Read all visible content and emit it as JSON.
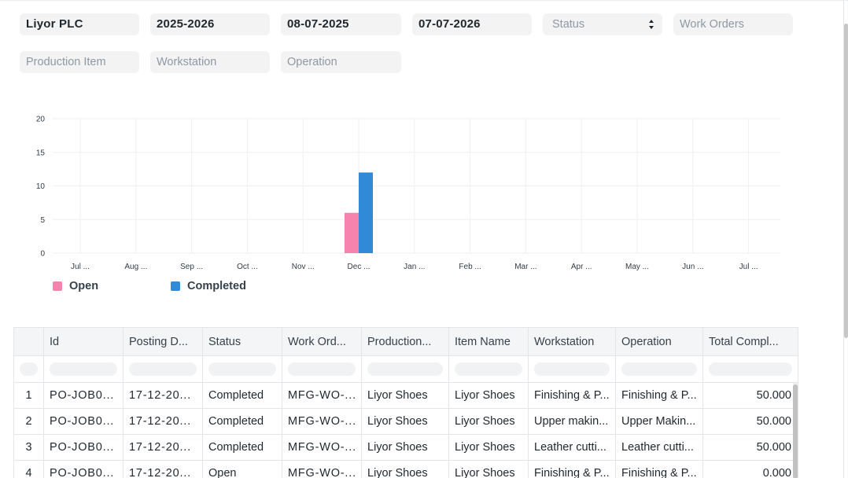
{
  "filters": {
    "company": "Liyor PLC",
    "fiscal_year": "2025-2026",
    "from_date": "08-07-2025",
    "to_date": "07-07-2026",
    "status_placeholder": "Status",
    "work_orders_placeholder": "Work Orders",
    "production_item_placeholder": "Production Item",
    "workstation_placeholder": "Workstation",
    "operation_placeholder": "Operation"
  },
  "chart_data": {
    "type": "bar",
    "categories": [
      "Jul ...",
      "Aug ...",
      "Sep ...",
      "Oct ...",
      "Nov ...",
      "Dec ...",
      "Jan ...",
      "Feb ...",
      "Mar ...",
      "Apr ...",
      "May ...",
      "Jun ...",
      "Jul ..."
    ],
    "series": [
      {
        "name": "Open",
        "color": "#f683ae",
        "values": [
          0,
          0,
          0,
          0,
          0,
          6,
          0,
          0,
          0,
          0,
          0,
          0,
          0
        ]
      },
      {
        "name": "Completed",
        "color": "#318ad8",
        "values": [
          0,
          0,
          0,
          0,
          0,
          12,
          0,
          0,
          0,
          0,
          0,
          0,
          0
        ]
      }
    ],
    "yticks": [
      0,
      5,
      10,
      15,
      20
    ],
    "ylim": [
      0,
      20
    ],
    "grid": true,
    "legend": "bottom-left"
  },
  "table": {
    "columns": [
      "Id",
      "Posting D...",
      "Status",
      "Work Ord...",
      "Production...",
      "Item Name",
      "Workstation",
      "Operation",
      "Total Compl..."
    ],
    "rows": [
      {
        "index": "1",
        "id": "PO-JOB0...",
        "posting_date": "17-12-20...",
        "status": "Completed",
        "work_order": "MFG-WO-...",
        "production_item": "Liyor Shoes",
        "item_name": "Liyor Shoes",
        "workstation": "Finishing & P...",
        "operation": "Finishing & P...",
        "total_completed": "50.000"
      },
      {
        "index": "2",
        "id": "PO-JOB0...",
        "posting_date": "17-12-20...",
        "status": "Completed",
        "work_order": "MFG-WO-...",
        "production_item": "Liyor Shoes",
        "item_name": "Liyor Shoes",
        "workstation": "Upper makin...",
        "operation": "Upper Makin...",
        "total_completed": "50.000"
      },
      {
        "index": "3",
        "id": "PO-JOB0...",
        "posting_date": "17-12-20...",
        "status": "Completed",
        "work_order": "MFG-WO-...",
        "production_item": "Liyor Shoes",
        "item_name": "Liyor Shoes",
        "workstation": "Leather cutti...",
        "operation": "Leather cutti...",
        "total_completed": "50.000"
      },
      {
        "index": "4",
        "id": "PO-JOB0...",
        "posting_date": "17-12-20...",
        "status": "Open",
        "work_order": "MFG-WO-...",
        "production_item": "Liyor Shoes",
        "item_name": "Liyor Shoes",
        "workstation": "Finishing & P...",
        "operation": "Finishing & P...",
        "total_completed": "0.000"
      }
    ]
  }
}
